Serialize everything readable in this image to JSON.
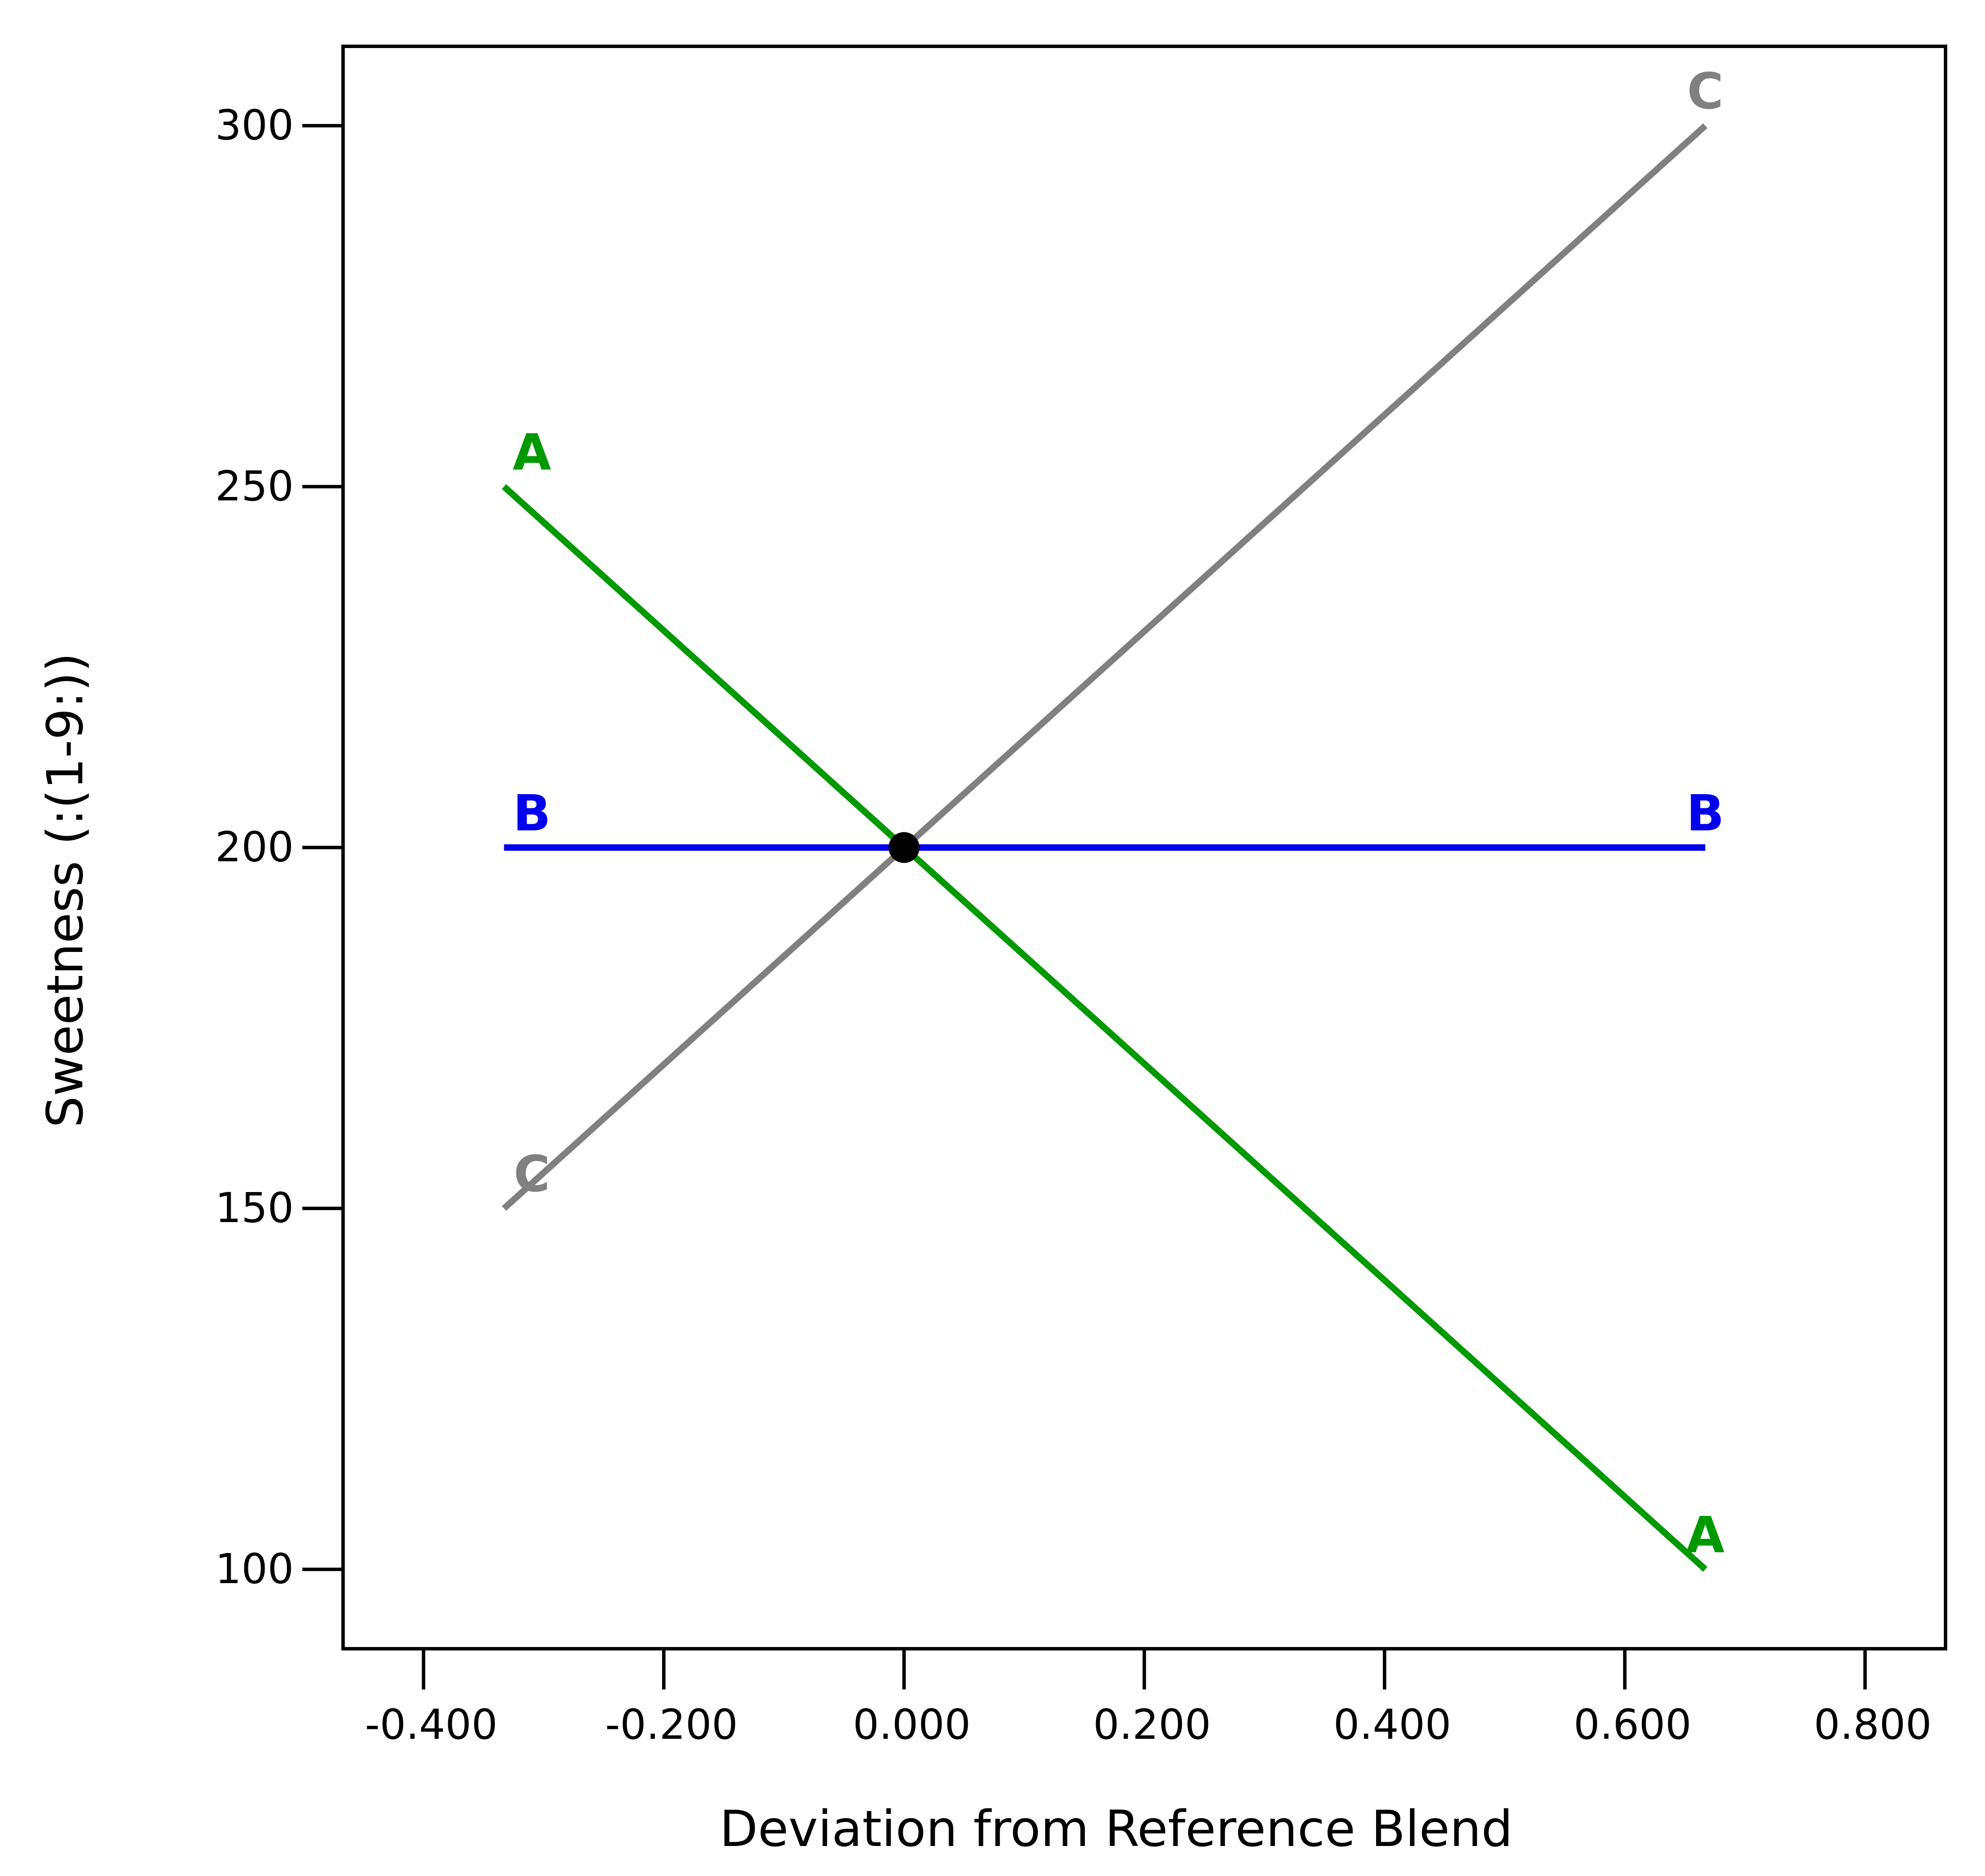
{
  "chart_data": {
    "type": "line",
    "title": "",
    "xlabel": "Deviation from Reference Blend",
    "ylabel": "Sweetness (:(1-9:))",
    "xlim": [
      -0.467,
      0.867
    ],
    "ylim": [
      89,
      311
    ],
    "x_ticks": [
      -0.4,
      -0.2,
      0.0,
      0.2,
      0.4,
      0.6,
      0.8
    ],
    "x_tick_labels": [
      "-0.400",
      "-0.200",
      "0.000",
      "0.200",
      "0.400",
      "0.600",
      "0.800"
    ],
    "y_ticks": [
      100,
      150,
      200,
      250,
      300
    ],
    "y_tick_labels": [
      "100",
      "150",
      "200",
      "250",
      "300"
    ],
    "grid": false,
    "legend": "none",
    "series": [
      {
        "name": "A",
        "color": "#009900",
        "x": [
          -0.333,
          0.667
        ],
        "y": [
          250,
          100
        ]
      },
      {
        "name": "B",
        "color": "#0000ee",
        "x": [
          -0.333,
          0.667
        ],
        "y": [
          200,
          200
        ]
      },
      {
        "name": "C",
        "color": "#808080",
        "x": [
          -0.333,
          0.667
        ],
        "y": [
          150,
          300
        ]
      }
    ],
    "reference_point": {
      "x": 0.0,
      "y": 200,
      "color": "#000000"
    }
  }
}
